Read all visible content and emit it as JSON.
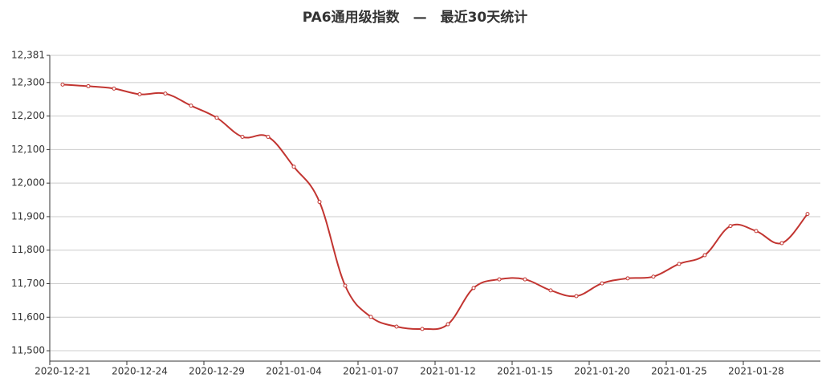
{
  "chart_data": {
    "type": "line",
    "title": "PA6通用级指数　—　最近30天统计",
    "categories": [
      "2020-12-21",
      null,
      null,
      "2020-12-24",
      null,
      null,
      "2020-12-29",
      null,
      null,
      "2021-01-04",
      null,
      null,
      "2021-01-07",
      null,
      null,
      "2021-01-12",
      null,
      null,
      "2021-01-15",
      null,
      null,
      "2021-01-20",
      null,
      null,
      "2021-01-25",
      null,
      null,
      "2021-01-28",
      null,
      null
    ],
    "series": [
      {
        "name": "PA6通用级指数",
        "color": "#c23531",
        "values": [
          12294,
          12289,
          12282,
          12265,
          12267,
          12231,
          12195,
          12138,
          12138,
          12049,
          11944,
          11694,
          11601,
          11572,
          11565,
          11579,
          11687,
          11713,
          11713,
          11680,
          11663,
          11701,
          11716,
          11721,
          11759,
          11785,
          11872,
          11857,
          11821,
          11908
        ]
      }
    ],
    "ylim": [
      11469,
      12381
    ],
    "yticks": [
      {
        "value": 11500,
        "label": "11,500"
      },
      {
        "value": 11600,
        "label": "11,600"
      },
      {
        "value": 11700,
        "label": "11,700"
      },
      {
        "value": 11800,
        "label": "11,800"
      },
      {
        "value": 11900,
        "label": "11,900"
      },
      {
        "value": 12000,
        "label": "12,000"
      },
      {
        "value": 12100,
        "label": "12,100"
      },
      {
        "value": 12200,
        "label": "12,200"
      },
      {
        "value": 12300,
        "label": "12,300"
      },
      {
        "value": 12381,
        "label": "12,381"
      }
    ],
    "grid": true
  }
}
